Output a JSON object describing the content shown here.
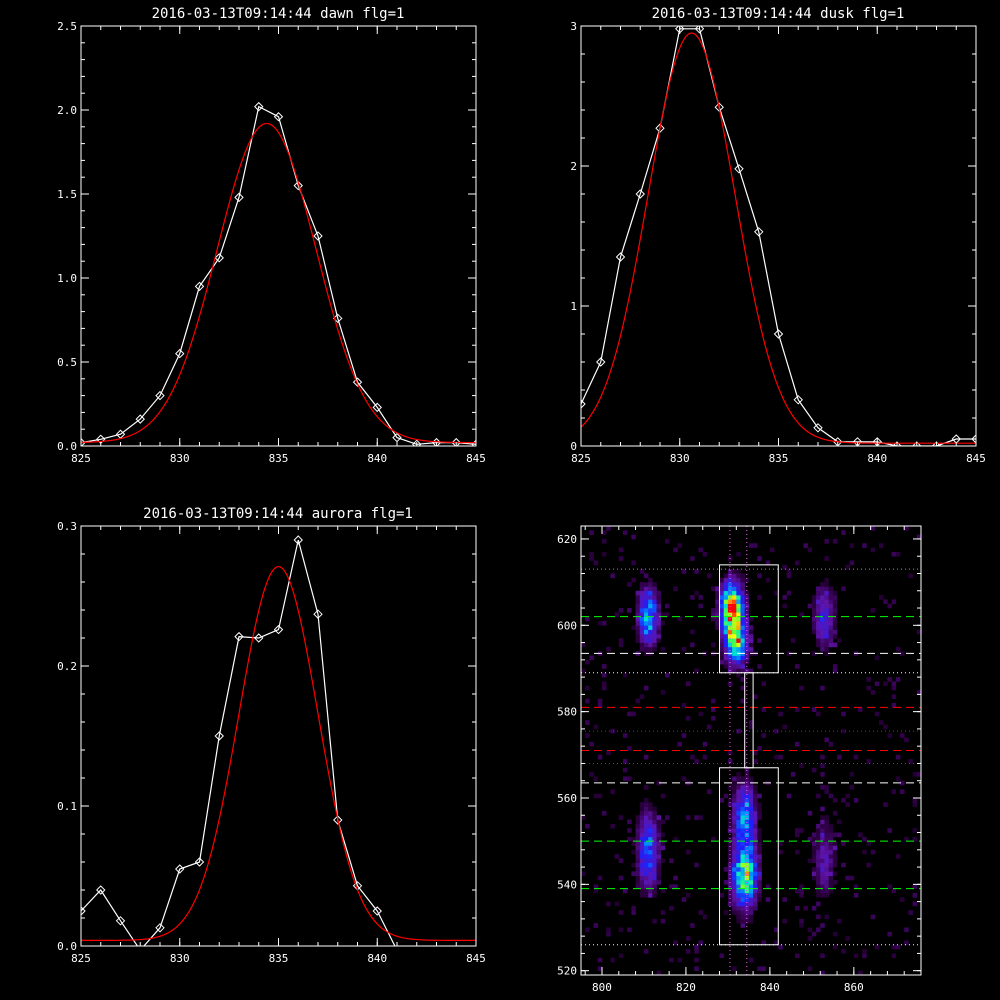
{
  "chart_data": [
    {
      "type": "line",
      "title": "2016-03-13T09:14:44 dawn flg=1",
      "xlim": [
        825,
        845
      ],
      "ylim": [
        0,
        2.5
      ],
      "xticks": [
        "825",
        "830",
        "835",
        "840",
        "845"
      ],
      "yticks": [
        "0.0",
        "0.5",
        "1.0",
        "1.5",
        "2.0",
        "2.5"
      ],
      "series": [
        {
          "color": "#ffffff",
          "markers": "diamond",
          "x": [
            825,
            826,
            827,
            828,
            829,
            830,
            831,
            832,
            833,
            834,
            835,
            836,
            837,
            838,
            839,
            840,
            841,
            842,
            843,
            844,
            845
          ],
          "y": [
            0.02,
            0.04,
            0.07,
            0.16,
            0.3,
            0.55,
            0.95,
            1.12,
            1.48,
            2.02,
            1.96,
            1.55,
            1.25,
            0.76,
            0.38,
            0.23,
            0.05,
            0.01,
            0.02,
            0.02,
            0.01
          ]
        },
        {
          "color": "#ff0000",
          "fit": {
            "A": 1.9,
            "mu": 834.4,
            "sigma": 2.5,
            "base": 0.02
          }
        }
      ]
    },
    {
      "type": "line",
      "title": "2016-03-13T09:14:44 dusk flg=1",
      "xlim": [
        825,
        845
      ],
      "ylim": [
        0,
        3
      ],
      "xticks": [
        "825",
        "830",
        "835",
        "840",
        "845"
      ],
      "yticks": [
        "0",
        "1",
        "2",
        "3"
      ],
      "series": [
        {
          "color": "#ffffff",
          "markers": "diamond",
          "x": [
            825,
            826,
            827,
            828,
            829,
            830,
            831,
            832,
            833,
            834,
            835,
            836,
            837,
            838,
            839,
            840,
            841,
            842,
            843,
            844,
            845
          ],
          "y": [
            0.3,
            0.6,
            1.35,
            1.8,
            2.27,
            2.98,
            2.98,
            2.42,
            1.98,
            1.53,
            0.8,
            0.33,
            0.13,
            0.03,
            0.03,
            0.03,
            0.0,
            0.0,
            0.0,
            0.05,
            0.05
          ]
        },
        {
          "color": "#ff0000",
          "fit": {
            "A": 2.93,
            "mu": 830.6,
            "sigma": 2.2,
            "base": 0.02
          }
        }
      ]
    },
    {
      "type": "line",
      "title": "2016-03-13T09:14:44 aurora flg=1",
      "xlim": [
        825,
        845
      ],
      "ylim": [
        0,
        0.3
      ],
      "xticks": [
        "825",
        "830",
        "835",
        "840",
        "845"
      ],
      "yticks": [
        "0.0",
        "0.1",
        "0.2",
        "0.3"
      ],
      "series": [
        {
          "color": "#ffffff",
          "markers": "diamond",
          "x": [
            825,
            826,
            827,
            828,
            829,
            830,
            831,
            832,
            833,
            834,
            835,
            836,
            837,
            838,
            839,
            840,
            841,
            842,
            843,
            844,
            845
          ],
          "y": [
            0.025,
            0.04,
            0.018,
            -0.003,
            0.013,
            0.055,
            0.06,
            0.15,
            0.221,
            0.22,
            0.226,
            0.29,
            0.237,
            0.09,
            0.043,
            0.025,
            -0.003,
            -0.003,
            -0.003,
            -0.003,
            -0.003
          ]
        },
        {
          "color": "#ff0000",
          "fit": {
            "A": 0.267,
            "mu": 835.0,
            "sigma": 2.0,
            "base": 0.004
          }
        }
      ]
    },
    {
      "type": "heatmap",
      "xlim": [
        795,
        876
      ],
      "ylim": [
        519,
        623
      ],
      "xticks": [
        "800",
        "820",
        "840",
        "860"
      ],
      "yticks": [
        "520",
        "540",
        "560",
        "580",
        "600",
        "620"
      ],
      "blobs": [
        {
          "x": 811,
          "y": 602,
          "sx": 1.7,
          "sy": 4.5,
          "v": 0.55
        },
        {
          "x": 811,
          "y": 548,
          "sx": 1.8,
          "sy": 6.0,
          "v": 0.45
        },
        {
          "x": 831,
          "y": 604,
          "sx": 1.8,
          "sy": 4.0,
          "v": 1.0
        },
        {
          "x": 832,
          "y": 596,
          "sx": 1.8,
          "sy": 3.5,
          "v": 0.7
        },
        {
          "x": 834,
          "y": 542,
          "sx": 2.0,
          "sy": 5.0,
          "v": 0.75
        },
        {
          "x": 834,
          "y": 556,
          "sx": 1.8,
          "sy": 5.0,
          "v": 0.5
        },
        {
          "x": 853,
          "y": 602,
          "sx": 1.8,
          "sy": 5.0,
          "v": 0.3
        },
        {
          "x": 853,
          "y": 546,
          "sx": 1.8,
          "sy": 6.0,
          "v": 0.22
        }
      ],
      "hlines": [
        {
          "y": 613,
          "color": "#00ff00",
          "style": "dotted"
        },
        {
          "y": 602,
          "color": "#00ff00",
          "style": "dashed"
        },
        {
          "y": 593.5,
          "color": "#ffffff",
          "style": "dashed"
        },
        {
          "y": 589,
          "color": "#ffffff",
          "style": "dotted"
        },
        {
          "y": 581,
          "color": "#ff0000",
          "style": "dashed"
        },
        {
          "y": 571,
          "color": "#ff0000",
          "style": "dashed"
        },
        {
          "y": 575.5,
          "color": "#ff0000",
          "style": "dotted"
        },
        {
          "y": 568,
          "color": "#ff0000",
          "style": "dotted"
        },
        {
          "y": 563.5,
          "color": "#ffffff",
          "style": "dashed"
        },
        {
          "y": 550,
          "color": "#00ff00",
          "style": "dashed"
        },
        {
          "y": 539,
          "color": "#00ff00",
          "style": "dashed"
        },
        {
          "y": 526,
          "color": "#ffffff",
          "style": "dotted"
        }
      ],
      "vlines": [
        {
          "x": 830.5,
          "color": "#ff55ff",
          "style": "dotted"
        },
        {
          "x": 834.5,
          "color": "#ff55ff",
          "style": "dotted"
        }
      ],
      "boxes": [
        {
          "x0": 828,
          "x1": 842,
          "y0": 589,
          "y1": 614
        },
        {
          "x0": 828,
          "x1": 842,
          "y0": 526,
          "y1": 567
        },
        {
          "x0": 834,
          "x1": 836,
          "y0": 567,
          "y1": 589
        }
      ]
    }
  ]
}
